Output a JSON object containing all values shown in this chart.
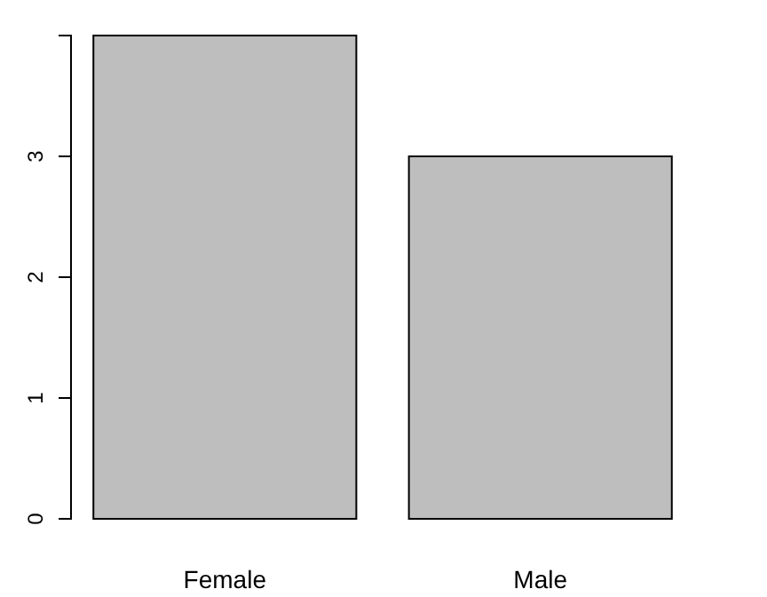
{
  "chart_data": {
    "type": "bar",
    "categories": [
      "Female",
      "Male"
    ],
    "values": [
      4,
      3
    ],
    "color": "#bebebe",
    "ylim": [
      0,
      4
    ],
    "yticks": [
      0,
      1,
      2,
      3
    ],
    "grid": false
  }
}
